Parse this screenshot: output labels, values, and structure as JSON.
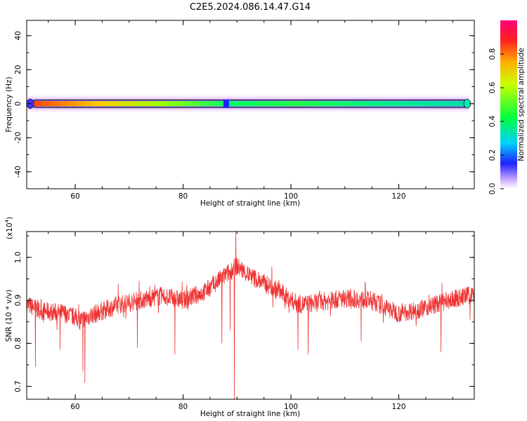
{
  "title": "C2E5.2024.086.14.47.G14",
  "chart_data": [
    {
      "type": "heatmap",
      "title": "C2E5.2024.086.14.47.G14",
      "xlabel": "Height of straight line (km)",
      "ylabel": "Frequency (Hz)",
      "xlim": [
        51,
        134
      ],
      "ylim": [
        -50,
        49
      ],
      "xticks": [
        "60",
        "80",
        "100",
        "120"
      ],
      "yticks": [
        "40",
        "20",
        "0",
        "-20",
        "-40"
      ],
      "colorbar": {
        "label": "Normalized spectral amplitude",
        "range": [
          0,
          1
        ],
        "ticks": [
          "0.0",
          "0.2",
          "0.4",
          "0.6",
          "0.8"
        ]
      },
      "band": {
        "center_frequency": 0,
        "peak_core_halfwidth": 1.0,
        "peak_halo_halfwidth": 4.0,
        "gap_at_height": 88
      }
    },
    {
      "type": "line",
      "xlabel": "Height of straight line (km)",
      "ylabel": "SNR (10 * v/v)",
      "multiplier": "(x10",
      "multiplier_exp": "4",
      "xlim": [
        51,
        134
      ],
      "ylim": [
        0.67,
        1.06
      ],
      "xticks": [
        "60",
        "80",
        "100",
        "120"
      ],
      "yticks": [
        "1.0",
        "0.9",
        "0.8",
        "0.7"
      ],
      "color": "#ee3333",
      "series": [
        {
          "baseline": [
            [
              51,
              0.89
            ],
            [
              54,
              0.875
            ],
            [
              58,
              0.87
            ],
            [
              61,
              0.855
            ],
            [
              64,
              0.87
            ],
            [
              68,
              0.89
            ],
            [
              72,
              0.9
            ],
            [
              76,
              0.91
            ],
            [
              80,
              0.9
            ],
            [
              84,
              0.92
            ],
            [
              87,
              0.95
            ],
            [
              89,
              0.97
            ],
            [
              90,
              0.98
            ],
            [
              92,
              0.96
            ],
            [
              95,
              0.94
            ],
            [
              98,
              0.92
            ],
            [
              100,
              0.9
            ],
            [
              102,
              0.89
            ],
            [
              105,
              0.895
            ],
            [
              110,
              0.905
            ],
            [
              115,
              0.9
            ],
            [
              118,
              0.88
            ],
            [
              120,
              0.87
            ],
            [
              124,
              0.88
            ],
            [
              128,
              0.895
            ],
            [
              131,
              0.905
            ],
            [
              134,
              0.915
            ]
          ],
          "spikes": [
            [
              52.6,
              0.745
            ],
            [
              57.2,
              0.785
            ],
            [
              61.8,
              0.708
            ],
            [
              61.4,
              0.735
            ],
            [
              71.5,
              0.79
            ],
            [
              78.5,
              0.775
            ],
            [
              87.2,
              0.8
            ],
            [
              88.7,
              0.83
            ],
            [
              89.5,
              0.67
            ],
            [
              89.8,
              1.06
            ],
            [
              90.2,
              0.97
            ],
            [
              101.3,
              0.785
            ],
            [
              103.2,
              0.775
            ],
            [
              113.0,
              0.805
            ],
            [
              127.8,
              0.78
            ],
            [
              133.2,
              0.855
            ]
          ],
          "noise_amplitude": 0.022
        }
      ]
    }
  ]
}
